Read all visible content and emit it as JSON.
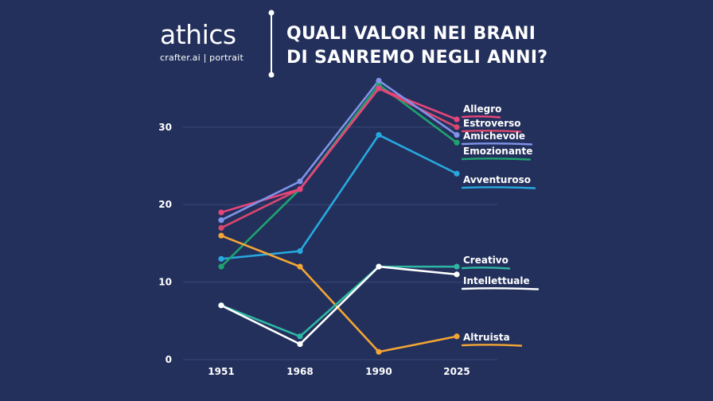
{
  "header": {
    "logo": "athics",
    "logo_sub": "crafter.ai | portrait",
    "title_line1": "QUALI VALORI NEI BRANI",
    "title_line2": "DI SANREMO NEGLI ANNI?"
  },
  "colors": {
    "background": "#23305c",
    "grid": "#3a4878",
    "text": "#ffffff"
  },
  "chart_data": {
    "type": "line",
    "categories": [
      "1951",
      "1968",
      "1990",
      "2025"
    ],
    "ylim": [
      0,
      36
    ],
    "yticks": [
      "0",
      "10",
      "20",
      "30"
    ],
    "grid": true,
    "series": [
      {
        "name": "Allegro",
        "values": [
          19,
          22,
          35,
          31
        ],
        "color": "#e8457a"
      },
      {
        "name": "Estroverso",
        "values": [
          17,
          22,
          35,
          30
        ],
        "color": "#d9476d"
      },
      {
        "name": "Amichevole",
        "values": [
          18,
          23,
          36,
          29
        ],
        "color": "#7f93e8"
      },
      {
        "name": "Emozionante",
        "values": [
          12,
          22,
          35.5,
          28
        ],
        "color": "#1fa36e"
      },
      {
        "name": "Avventuroso",
        "values": [
          13,
          14,
          29,
          24
        ],
        "color": "#27a9df"
      },
      {
        "name": "Creativo",
        "values": [
          7,
          3,
          12,
          12
        ],
        "color": "#2eb7a3"
      },
      {
        "name": "Intellettuale",
        "values": [
          7,
          2,
          12,
          11
        ],
        "color": "#ffffff"
      },
      {
        "name": "Altruista",
        "values": [
          16,
          12,
          1,
          3
        ],
        "color": "#f2a535"
      }
    ]
  }
}
